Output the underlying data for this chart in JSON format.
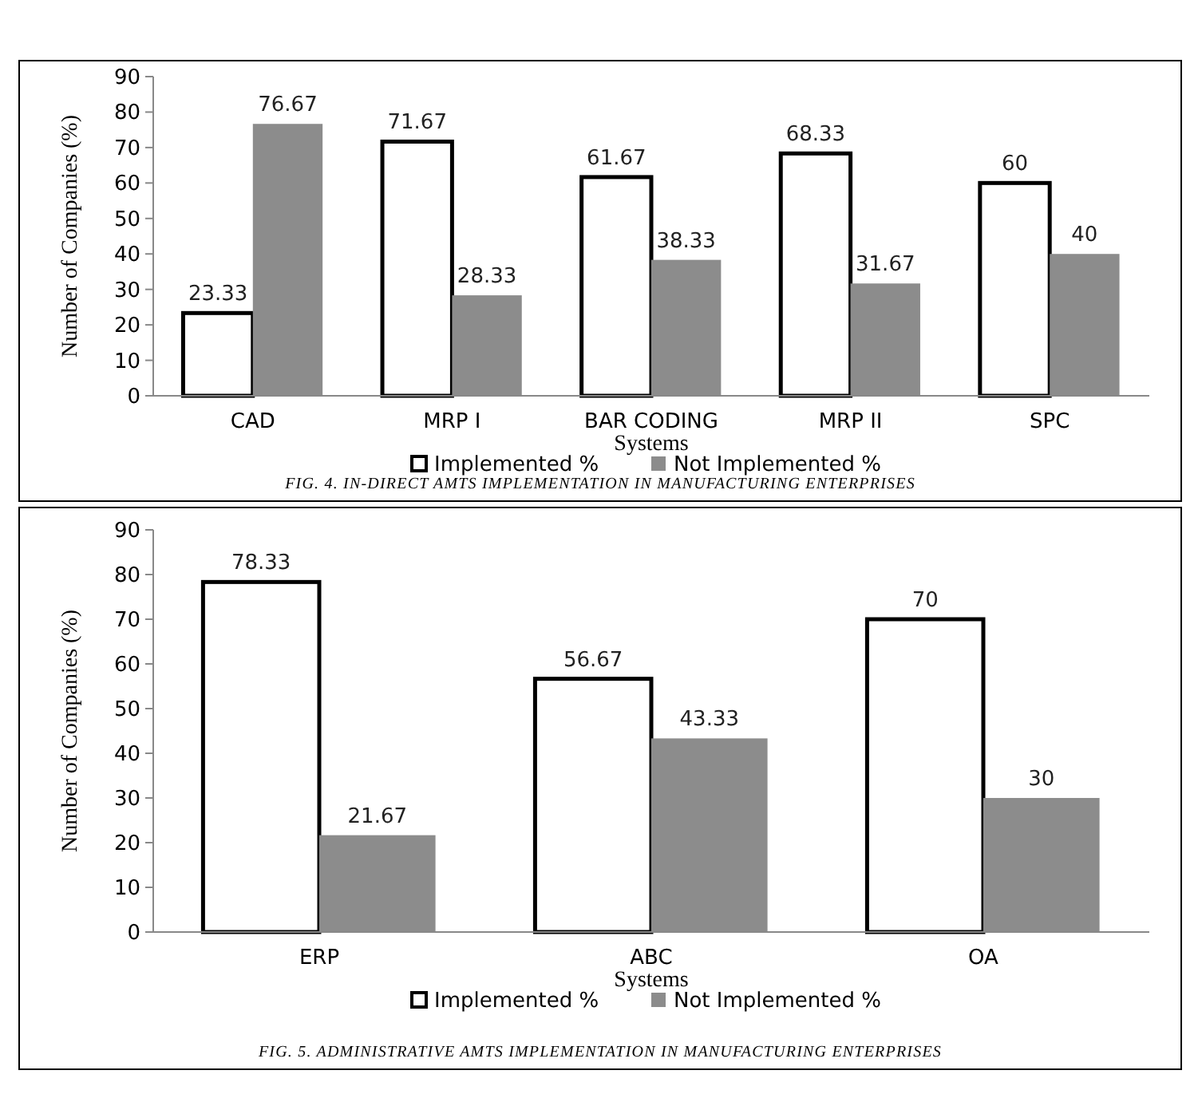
{
  "chart_data": [
    {
      "type": "bar",
      "xlabel": "Systems",
      "ylabel": "Number of Companies (%)",
      "categories": [
        "CAD",
        "MRP I",
        "BAR CODING",
        "MRP II",
        "SPC"
      ],
      "series": [
        {
          "name": "Implemented %",
          "color": "#ffffff",
          "values": [
            23.33,
            71.67,
            61.67,
            68.33,
            60
          ]
        },
        {
          "name": "Not Implemented %",
          "color": "#8c8c8c",
          "values": [
            76.67,
            28.33,
            38.33,
            31.67,
            40
          ]
        }
      ],
      "ylim": [
        0,
        90
      ],
      "yticks": [
        0,
        10,
        20,
        30,
        40,
        50,
        60,
        70,
        80,
        90
      ],
      "data_labels": true,
      "legend": "bottom",
      "grid": false,
      "annotations": [
        "FIG. 4. IN-DIRECT AMTS IMPLEMENTATION IN MANUFACTURING ENTERPRISES"
      ]
    },
    {
      "type": "bar",
      "xlabel": "Systems",
      "ylabel": "Number of Companies (%)",
      "categories": [
        "ERP",
        "ABC",
        "OA"
      ],
      "series": [
        {
          "name": "Implemented %",
          "color": "#ffffff",
          "values": [
            78.33,
            56.67,
            70
          ]
        },
        {
          "name": "Not Implemented %",
          "color": "#8c8c8c",
          "values": [
            21.67,
            43.33,
            30
          ]
        }
      ],
      "ylim": [
        0,
        90
      ],
      "yticks": [
        0,
        10,
        20,
        30,
        40,
        50,
        60,
        70,
        80,
        90
      ],
      "data_labels": true,
      "legend": "bottom",
      "grid": false,
      "annotations": [
        "FIG. 5. ADMINISTRATIVE AMTS IMPLEMENTATION IN MANUFACTURING ENTERPRISES"
      ]
    }
  ]
}
